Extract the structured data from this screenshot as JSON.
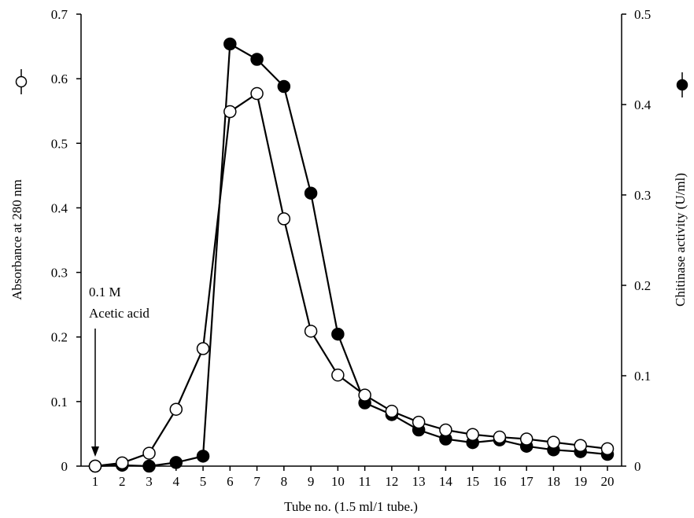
{
  "chart_data": {
    "type": "line",
    "xlabel": "Tube no. (1.5 ml/1 tube.)",
    "ylabel_left": "Absorbance at 280 nm",
    "ylabel_right": "Chitinase activity (U/ml)",
    "x": [
      1,
      2,
      3,
      4,
      5,
      6,
      7,
      8,
      9,
      10,
      11,
      12,
      13,
      14,
      15,
      16,
      17,
      18,
      19,
      20
    ],
    "x_ticks": [
      "1",
      "2",
      "3",
      "4",
      "5",
      "6",
      "7",
      "8",
      "9",
      "10",
      "11",
      "12",
      "13",
      "14",
      "15",
      "16",
      "17",
      "18",
      "19",
      "20"
    ],
    "ylim_left": [
      0,
      0.7
    ],
    "yticks_left": [
      "0",
      "0.1",
      "0.2",
      "0.3",
      "0.4",
      "0.5",
      "0.6",
      "0.7"
    ],
    "ylim_right": [
      0,
      0.5
    ],
    "yticks_right": [
      "0",
      "0.1",
      "0.2",
      "0.3",
      "0.4",
      "0.5"
    ],
    "grid": false,
    "series": [
      {
        "axis": "left",
        "marker": "open-circle",
        "values": [
          0.0,
          0.005,
          0.02,
          0.088,
          0.182,
          0.549,
          0.577,
          0.383,
          0.209,
          0.141,
          0.11,
          0.085,
          0.068,
          0.056,
          0.049,
          0.045,
          0.042,
          0.037,
          0.032,
          0.027
        ]
      },
      {
        "axis": "right",
        "marker": "filled-circle",
        "values": [
          0.0,
          0.001,
          0.0,
          0.004,
          0.011,
          0.467,
          0.45,
          0.42,
          0.302,
          0.146,
          0.07,
          0.057,
          0.04,
          0.03,
          0.026,
          0.029,
          0.022,
          0.018,
          0.016,
          0.013
        ]
      }
    ],
    "annotation": {
      "line1": "0.1 M",
      "line2": "Acetic acid",
      "at_x": 1
    }
  }
}
